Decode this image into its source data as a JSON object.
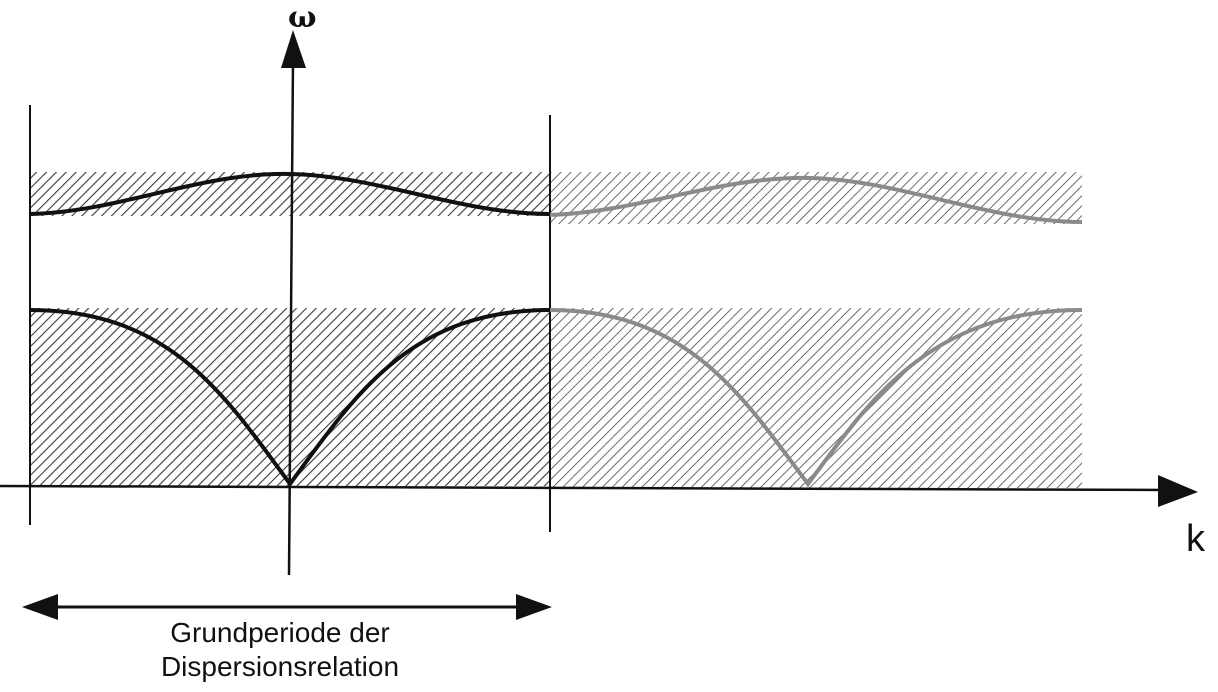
{
  "labels": {
    "omega": "ω",
    "k": "k",
    "caption_line1": "Grundperiode der",
    "caption_line2": "Dispersionsrelation"
  },
  "colors": {
    "ink": "#111111",
    "hatch": "#3a3a3a",
    "repeat_curve": "#8a8a8a",
    "background": "#ffffff"
  }
}
